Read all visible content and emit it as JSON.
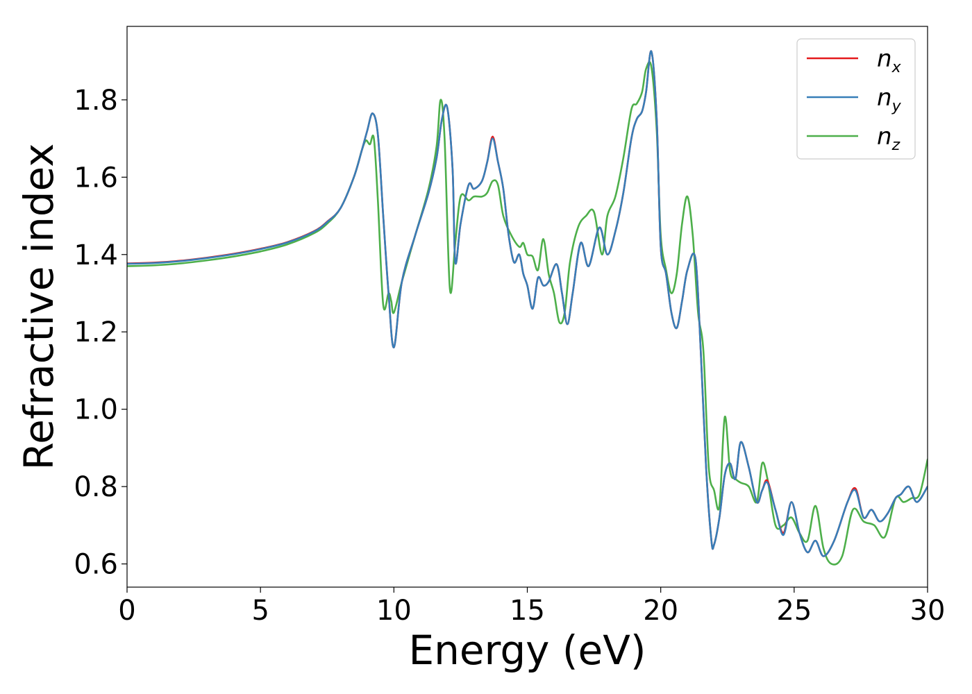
{
  "chart_data": {
    "type": "line",
    "xlabel": "Energy (eV)",
    "ylabel": "Refractive index",
    "xlim": [
      0,
      30
    ],
    "ylim": [
      0.54,
      1.99
    ],
    "xticks": [
      0,
      5,
      10,
      15,
      20,
      25,
      30
    ],
    "yticks": [
      0.6,
      0.8,
      1.0,
      1.2,
      1.4,
      1.6,
      1.8
    ],
    "ytick_labels": [
      "0.6",
      "0.8",
      "1.0",
      "1.2",
      "1.4",
      "1.6",
      "1.8"
    ],
    "grid": false,
    "legend": "top-right",
    "series": [
      {
        "name": "n_x",
        "label_main": "n",
        "label_sub": "x",
        "color": "#e41a1c",
        "x": [
          0,
          1,
          2,
          3,
          4,
          5,
          6,
          7,
          7.5,
          8,
          8.5,
          8.8,
          9.0,
          9.2,
          9.4,
          9.6,
          9.8,
          10.0,
          10.3,
          10.8,
          11.3,
          11.6,
          11.8,
          12.0,
          12.2,
          12.3,
          12.5,
          12.8,
          13.0,
          13.3,
          13.5,
          13.7,
          13.9,
          14.1,
          14.3,
          14.5,
          14.7,
          14.85,
          15.0,
          15.2,
          15.4,
          15.6,
          15.8,
          16.1,
          16.3,
          16.5,
          16.7,
          17.0,
          17.3,
          17.7,
          18.0,
          18.3,
          18.6,
          18.9,
          19.1,
          19.3,
          19.45,
          19.65,
          19.85,
          20.0,
          20.2,
          20.4,
          20.6,
          20.8,
          21.0,
          21.3,
          21.5,
          21.7,
          21.9,
          22.0,
          22.2,
          22.4,
          22.6,
          22.8,
          23.0,
          23.3,
          23.6,
          23.8,
          24.0,
          24.3,
          24.6,
          24.9,
          25.2,
          25.5,
          25.8,
          26.1,
          26.5,
          27.0,
          27.3,
          27.6,
          27.9,
          28.2,
          28.5,
          28.8,
          29.0,
          29.3,
          29.6,
          30.0
        ],
        "y": [
          1.377,
          1.379,
          1.384,
          1.392,
          1.402,
          1.415,
          1.432,
          1.46,
          1.485,
          1.52,
          1.6,
          1.67,
          1.72,
          1.765,
          1.71,
          1.5,
          1.3,
          1.16,
          1.33,
          1.45,
          1.56,
          1.65,
          1.75,
          1.78,
          1.62,
          1.38,
          1.48,
          1.58,
          1.57,
          1.59,
          1.64,
          1.705,
          1.64,
          1.57,
          1.45,
          1.38,
          1.4,
          1.35,
          1.32,
          1.26,
          1.34,
          1.32,
          1.33,
          1.375,
          1.3,
          1.22,
          1.3,
          1.43,
          1.37,
          1.47,
          1.4,
          1.46,
          1.56,
          1.7,
          1.75,
          1.77,
          1.82,
          1.925,
          1.75,
          1.42,
          1.35,
          1.25,
          1.21,
          1.28,
          1.36,
          1.39,
          1.15,
          0.85,
          0.66,
          0.65,
          0.72,
          0.83,
          0.86,
          0.82,
          0.915,
          0.85,
          0.76,
          0.79,
          0.815,
          0.74,
          0.68,
          0.76,
          0.68,
          0.63,
          0.66,
          0.62,
          0.66,
          0.76,
          0.795,
          0.72,
          0.74,
          0.71,
          0.73,
          0.77,
          0.78,
          0.8,
          0.76,
          0.8
        ]
      },
      {
        "name": "n_y",
        "label_main": "n",
        "label_sub": "y",
        "color": "#377eb8",
        "x": [
          0,
          1,
          2,
          3,
          4,
          5,
          6,
          7,
          7.5,
          8,
          8.5,
          8.8,
          9.0,
          9.2,
          9.4,
          9.6,
          9.8,
          10.0,
          10.3,
          10.8,
          11.3,
          11.6,
          11.8,
          12.0,
          12.2,
          12.3,
          12.5,
          12.8,
          13.0,
          13.3,
          13.5,
          13.7,
          13.9,
          14.1,
          14.3,
          14.5,
          14.7,
          14.85,
          15.0,
          15.2,
          15.4,
          15.6,
          15.8,
          16.1,
          16.3,
          16.5,
          16.7,
          17.0,
          17.3,
          17.7,
          18.0,
          18.3,
          18.6,
          18.9,
          19.1,
          19.3,
          19.45,
          19.65,
          19.85,
          20.0,
          20.2,
          20.4,
          20.6,
          20.8,
          21.0,
          21.3,
          21.5,
          21.7,
          21.9,
          22.0,
          22.2,
          22.4,
          22.6,
          22.8,
          23.0,
          23.3,
          23.6,
          23.8,
          24.0,
          24.3,
          24.6,
          24.9,
          25.2,
          25.5,
          25.8,
          26.1,
          26.5,
          27.0,
          27.3,
          27.6,
          27.9,
          28.2,
          28.5,
          28.8,
          29.0,
          29.3,
          29.6,
          30.0
        ],
        "y": [
          1.376,
          1.378,
          1.383,
          1.391,
          1.401,
          1.414,
          1.431,
          1.459,
          1.484,
          1.52,
          1.6,
          1.67,
          1.72,
          1.765,
          1.71,
          1.5,
          1.3,
          1.16,
          1.33,
          1.45,
          1.56,
          1.65,
          1.75,
          1.78,
          1.62,
          1.38,
          1.48,
          1.58,
          1.57,
          1.59,
          1.64,
          1.7,
          1.64,
          1.57,
          1.45,
          1.38,
          1.4,
          1.35,
          1.32,
          1.26,
          1.34,
          1.32,
          1.33,
          1.375,
          1.3,
          1.22,
          1.3,
          1.43,
          1.37,
          1.47,
          1.4,
          1.46,
          1.56,
          1.7,
          1.75,
          1.77,
          1.82,
          1.925,
          1.75,
          1.42,
          1.35,
          1.25,
          1.21,
          1.28,
          1.36,
          1.39,
          1.15,
          0.85,
          0.66,
          0.65,
          0.72,
          0.83,
          0.86,
          0.82,
          0.915,
          0.85,
          0.76,
          0.79,
          0.81,
          0.74,
          0.675,
          0.76,
          0.68,
          0.63,
          0.66,
          0.62,
          0.66,
          0.76,
          0.79,
          0.72,
          0.74,
          0.71,
          0.73,
          0.77,
          0.78,
          0.8,
          0.76,
          0.8
        ]
      },
      {
        "name": "n_z",
        "label_main": "n",
        "label_sub": "z",
        "color": "#4daf4a",
        "x": [
          0,
          1,
          2,
          3,
          4,
          5,
          6,
          7,
          7.5,
          8,
          8.5,
          8.8,
          8.95,
          9.1,
          9.25,
          9.4,
          9.6,
          9.8,
          9.9,
          10.0,
          10.3,
          10.8,
          11.3,
          11.6,
          11.75,
          11.9,
          12.1,
          12.3,
          12.5,
          12.8,
          13.0,
          13.3,
          13.5,
          13.7,
          13.9,
          14.1,
          14.4,
          14.7,
          14.85,
          15.0,
          15.2,
          15.4,
          15.6,
          15.8,
          16.0,
          16.2,
          16.4,
          16.6,
          16.9,
          17.2,
          17.5,
          17.8,
          18.0,
          18.3,
          18.6,
          18.9,
          19.1,
          19.3,
          19.45,
          19.65,
          19.85,
          20.0,
          20.2,
          20.4,
          20.6,
          20.8,
          21.0,
          21.2,
          21.4,
          21.6,
          21.8,
          22.0,
          22.2,
          22.4,
          22.6,
          22.8,
          23.0,
          23.3,
          23.6,
          23.8,
          24.0,
          24.3,
          24.6,
          24.9,
          25.2,
          25.5,
          25.8,
          26.1,
          26.4,
          26.8,
          27.2,
          27.6,
          28.0,
          28.4,
          28.8,
          29.1,
          29.4,
          29.7,
          30.0
        ],
        "y": [
          1.37,
          1.372,
          1.377,
          1.385,
          1.395,
          1.408,
          1.426,
          1.455,
          1.48,
          1.52,
          1.6,
          1.67,
          1.695,
          1.685,
          1.7,
          1.54,
          1.27,
          1.3,
          1.28,
          1.25,
          1.33,
          1.45,
          1.57,
          1.68,
          1.8,
          1.7,
          1.31,
          1.43,
          1.55,
          1.54,
          1.55,
          1.55,
          1.56,
          1.59,
          1.58,
          1.5,
          1.45,
          1.42,
          1.43,
          1.4,
          1.395,
          1.36,
          1.44,
          1.35,
          1.3,
          1.225,
          1.25,
          1.38,
          1.47,
          1.5,
          1.51,
          1.4,
          1.5,
          1.55,
          1.65,
          1.775,
          1.79,
          1.82,
          1.88,
          1.885,
          1.72,
          1.45,
          1.36,
          1.3,
          1.35,
          1.48,
          1.55,
          1.45,
          1.25,
          1.15,
          0.85,
          0.79,
          0.75,
          0.98,
          0.84,
          0.82,
          0.81,
          0.8,
          0.76,
          0.86,
          0.82,
          0.7,
          0.7,
          0.72,
          0.68,
          0.66,
          0.75,
          0.64,
          0.6,
          0.62,
          0.74,
          0.71,
          0.7,
          0.67,
          0.77,
          0.76,
          0.77,
          0.78,
          0.87
        ]
      }
    ]
  }
}
